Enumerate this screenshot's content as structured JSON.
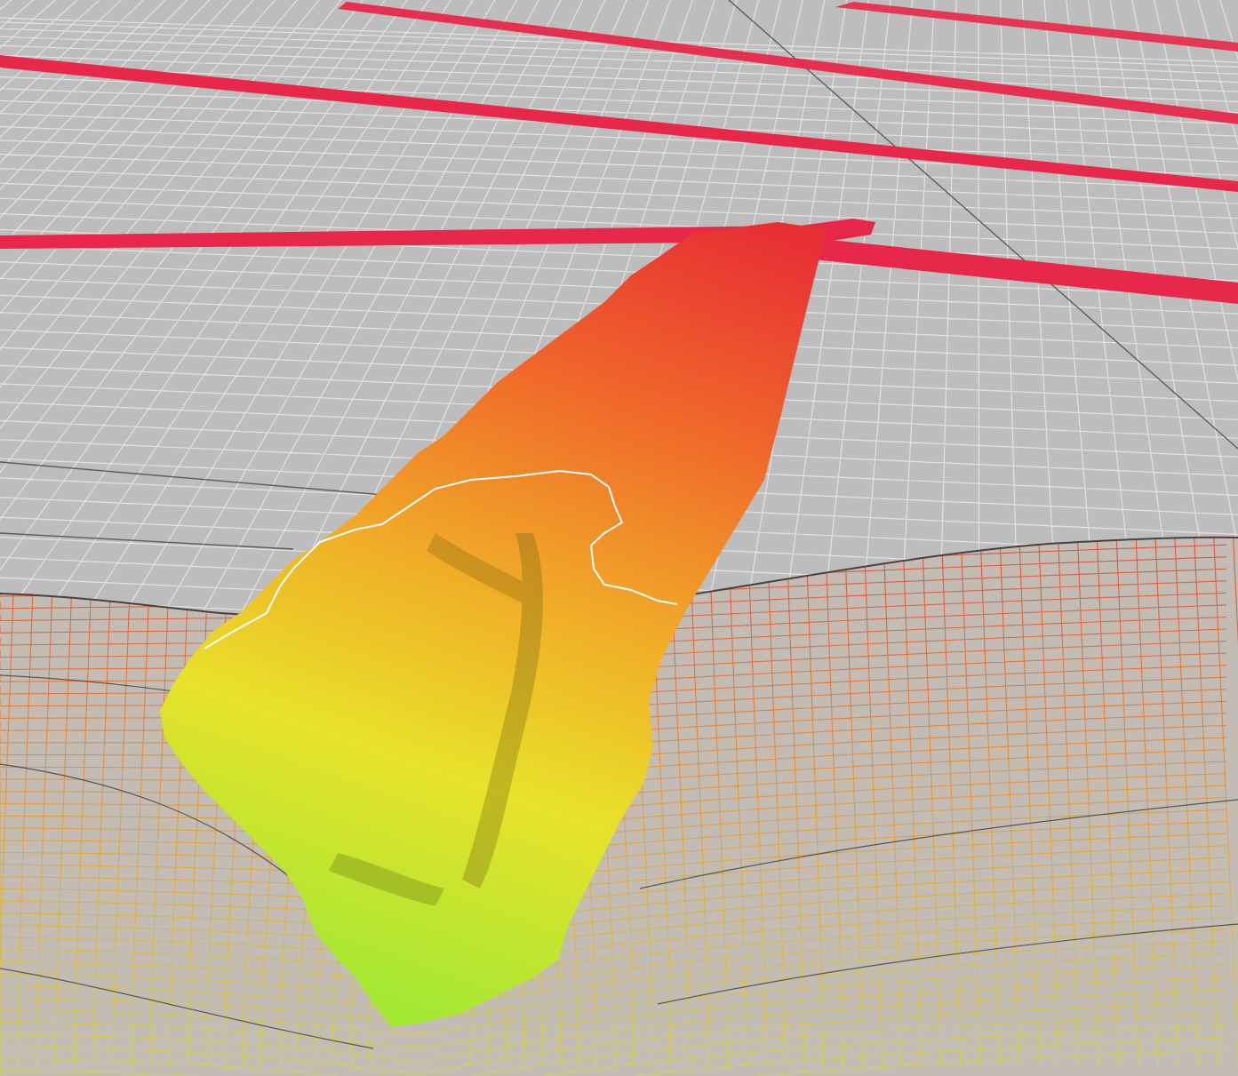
{
  "scene": {
    "kind": "3d-bathymetry-render",
    "background_color": "#bdbdbd",
    "grid_color": "#e4e4e4",
    "major_grid_color": "#5a5a5a",
    "survey_line_color": "#e8284a",
    "surface_gradient": [
      "#e83030",
      "#f07a28",
      "#f0b826",
      "#e6e626",
      "#a6e632"
    ],
    "mesh_gradient": [
      "#e05030",
      "#e8a030",
      "#d8d840"
    ],
    "contour_line_color": "#ffffff"
  }
}
